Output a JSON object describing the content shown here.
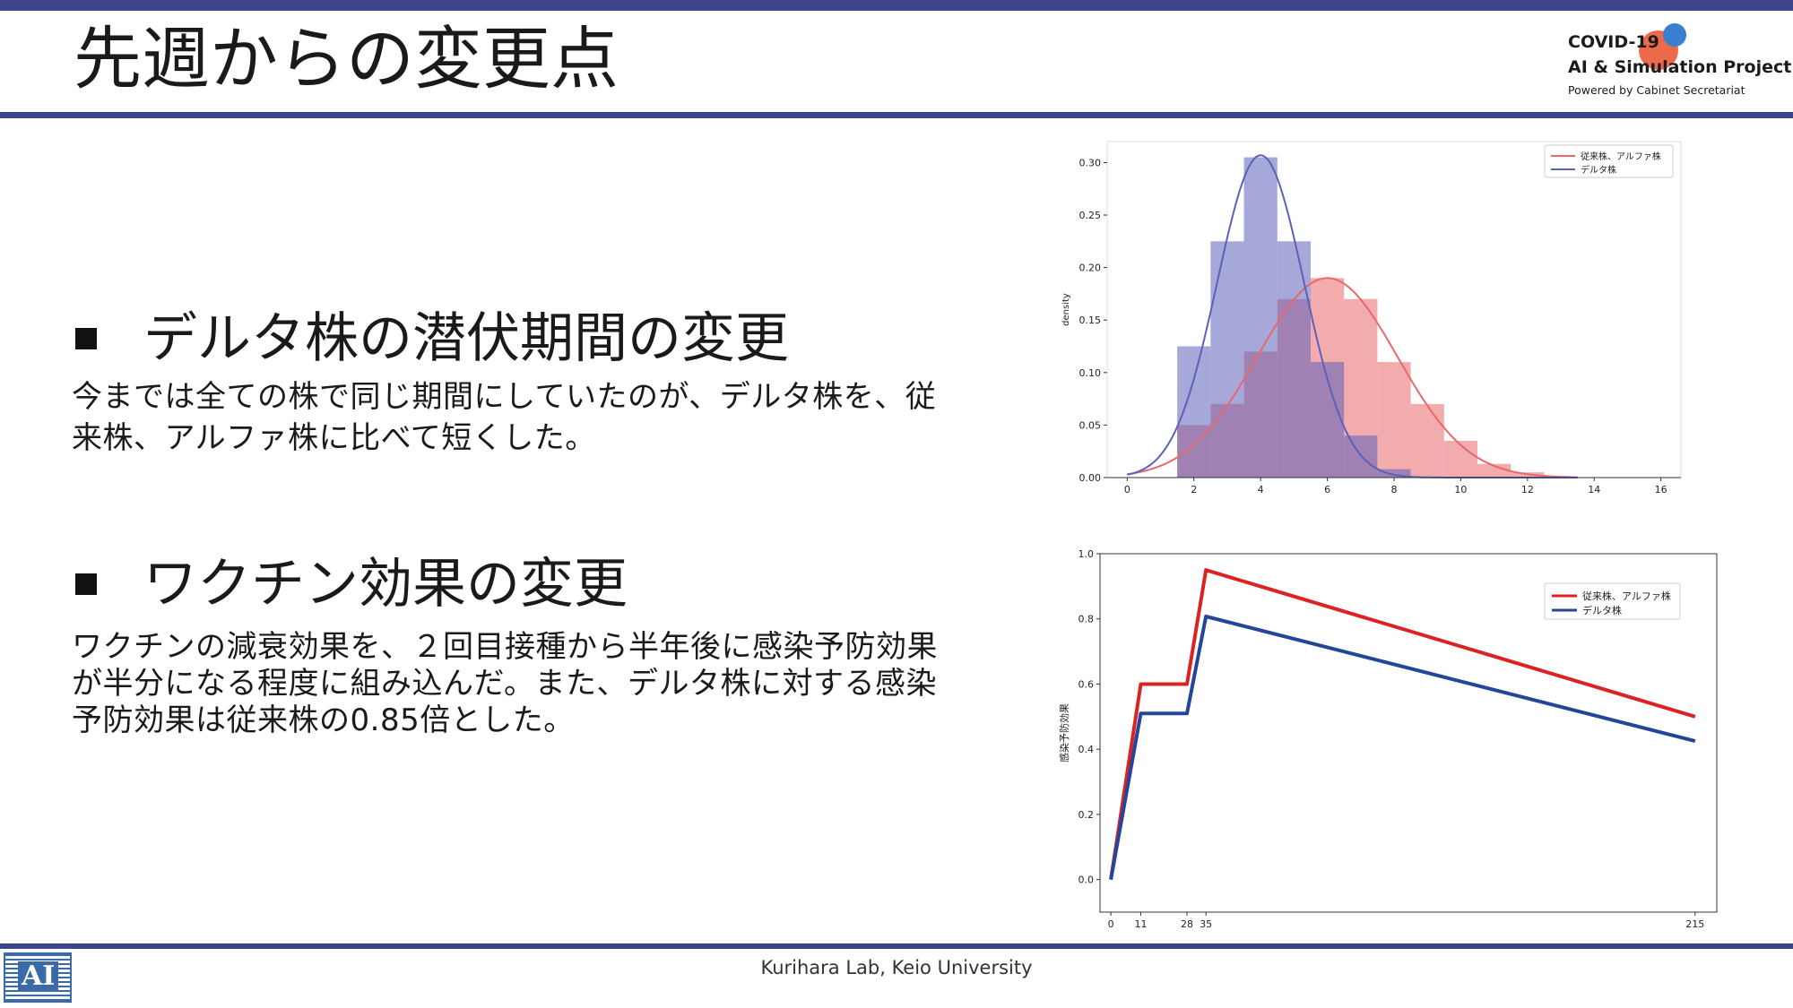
{
  "slide": {
    "title": "先週からの変更点"
  },
  "logo": {
    "line1": "COVID-19",
    "line2": "AI & Simulation Project",
    "line3": "Powered by Cabinet Secretariat",
    "colors": {
      "orange": "#ec6a4b",
      "blue": "#3a7fd0"
    }
  },
  "sections": [
    {
      "heading": "デルタ株の潜伏期間の変更",
      "body": "今までは全ての株で同じ期間にしていたのが、デルタ株を、従\n来株、アルファ株に比べて短くした。"
    },
    {
      "heading": "ワクチン効果の変更",
      "body": "ワクチンの減衰効果を、２回目接種から半年後に感染予防効果\nが半分になる程度に組み込んだ。また、デルタ株に対する感染\n予防効果は従来株の0.85倍とした。"
    }
  ],
  "chart_data": [
    {
      "type": "bar",
      "ylabel": "density",
      "xlim": [
        -0.6,
        16.6
      ],
      "ylim": [
        0,
        0.32
      ],
      "xticks": [
        "0",
        "2",
        "4",
        "6",
        "8",
        "10",
        "12",
        "14",
        "16"
      ],
      "yticks": [
        "0.00",
        "0.05",
        "0.10",
        "0.15",
        "0.20",
        "0.25",
        "0.30"
      ],
      "legend_position": "top-right",
      "series": [
        {
          "name": "従来株、アルファ株",
          "color": "#e8686a",
          "bin_edges": [
            1.5,
            2.5,
            3.5,
            4.5,
            5.5,
            6.5,
            7.5,
            8.5,
            9.5,
            10.5,
            11.5,
            12.5
          ],
          "values": [
            0.05,
            0.07,
            0.12,
            0.17,
            0.19,
            0.17,
            0.11,
            0.07,
            0.035,
            0.013,
            0.005
          ],
          "curve": {
            "mean": 6.0,
            "sd": 2.1,
            "peak": 0.19
          }
        },
        {
          "name": "デルタ株",
          "color": "#5b61b8",
          "bin_edges": [
            1.5,
            2.5,
            3.5,
            4.5,
            5.5,
            6.5,
            7.5,
            8.5
          ],
          "values": [
            0.125,
            0.225,
            0.305,
            0.225,
            0.11,
            0.04,
            0.008
          ],
          "curve": {
            "mean": 4.0,
            "sd": 1.3,
            "peak": 0.307
          }
        }
      ]
    },
    {
      "type": "line",
      "ylabel": "感染予防効果",
      "xlim": [
        -4,
        223
      ],
      "ylim": [
        -0.1,
        1.0
      ],
      "xticks": [
        0,
        11,
        28,
        35,
        215
      ],
      "yticks": [
        "0.0",
        "0.2",
        "0.4",
        "0.6",
        "0.8",
        "1.0"
      ],
      "legend_position": "top-right",
      "series": [
        {
          "name": "従来株、アルファ株",
          "color": "#dc2323",
          "x": [
            0,
            11,
            28,
            35,
            215
          ],
          "y": [
            0,
            0.6,
            0.6,
            0.95,
            0.5
          ]
        },
        {
          "name": "デルタ株",
          "color": "#23469b",
          "x": [
            0,
            11,
            28,
            35,
            215
          ],
          "y": [
            0,
            0.51,
            0.51,
            0.8075,
            0.425
          ]
        }
      ]
    }
  ],
  "footer": {
    "text": "Kurihara Lab, Keio University",
    "logo_text": "AI"
  }
}
